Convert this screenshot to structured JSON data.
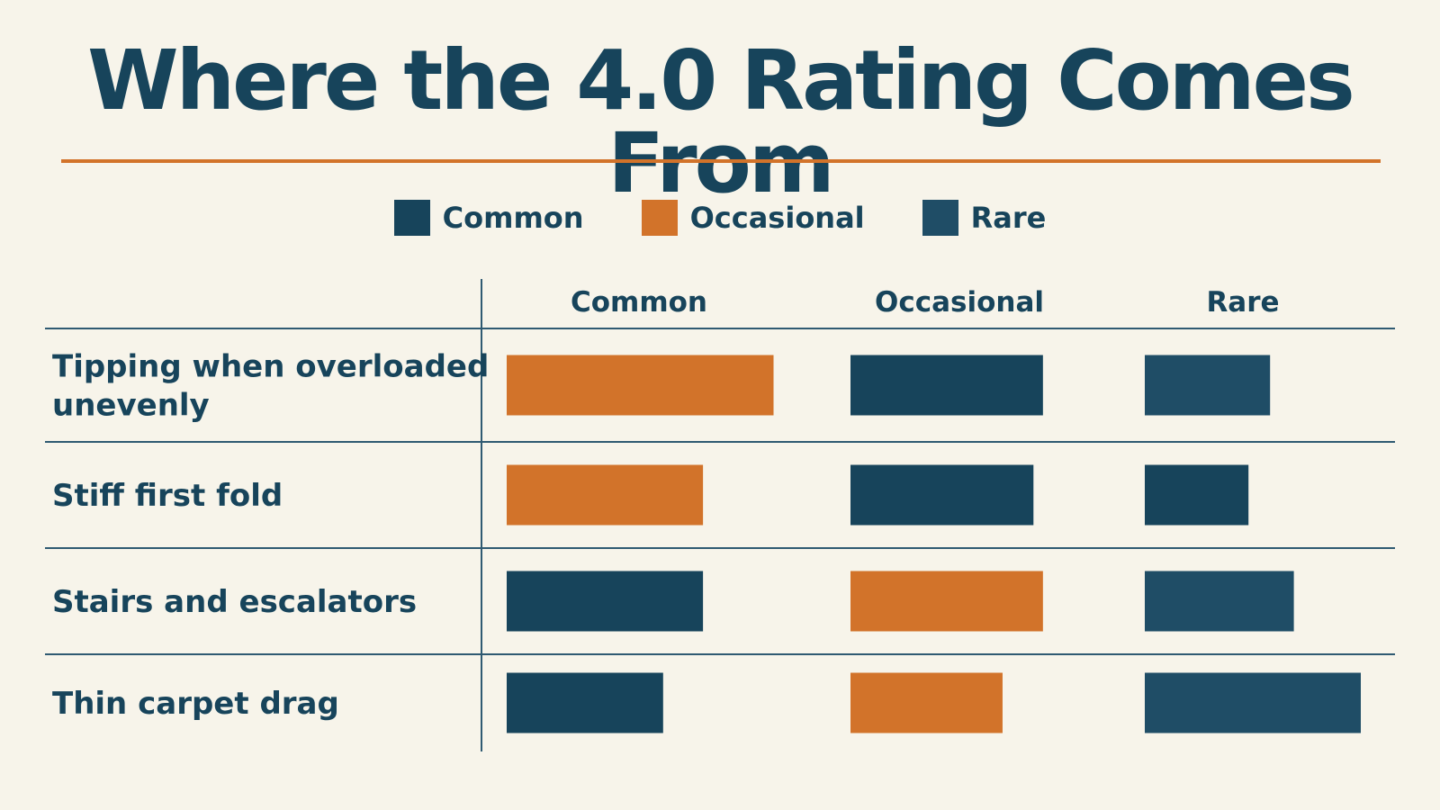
{
  "title": "Where the 4.0 Rating Comes From",
  "colors": {
    "background": "#f7f4ea",
    "text": "#17445b",
    "accent_rule": "#d2732a",
    "grid": "#2f5a72"
  },
  "legend": [
    {
      "label": "Common",
      "color": "#17445b"
    },
    {
      "label": "Occasional",
      "color": "#d2732a"
    },
    {
      "label": "Rare",
      "color": "#1f4d66"
    }
  ],
  "chart_data": {
    "type": "table",
    "title": "Where the 4.0 Rating Comes From",
    "columns": [
      "Common",
      "Occasional",
      "Rare"
    ],
    "bar_colors": {
      "orange": "#d2732a",
      "dark": "#17445b",
      "teal": "#1f4d66"
    },
    "rows": [
      {
        "label_lines": [
          "Tipping when overloaded",
          "unevenly"
        ],
        "bars": [
          {
            "value": 0.87,
            "color": "orange"
          },
          {
            "value": 0.81,
            "color": "dark"
          },
          {
            "value": 0.58,
            "color": "teal"
          }
        ]
      },
      {
        "label_lines": [
          "Stiff first fold"
        ],
        "bars": [
          {
            "value": 0.64,
            "color": "orange"
          },
          {
            "value": 0.77,
            "color": "dark"
          },
          {
            "value": 0.48,
            "color": "dark"
          }
        ]
      },
      {
        "label_lines": [
          "Stairs and escalators"
        ],
        "bars": [
          {
            "value": 0.64,
            "color": "dark"
          },
          {
            "value": 0.81,
            "color": "orange"
          },
          {
            "value": 0.69,
            "color": "teal"
          }
        ]
      },
      {
        "label_lines": [
          "Thin carpet drag"
        ],
        "bars": [
          {
            "value": 0.51,
            "color": "dark"
          },
          {
            "value": 0.64,
            "color": "orange"
          },
          {
            "value": 1.0,
            "color": "teal"
          }
        ]
      }
    ]
  }
}
